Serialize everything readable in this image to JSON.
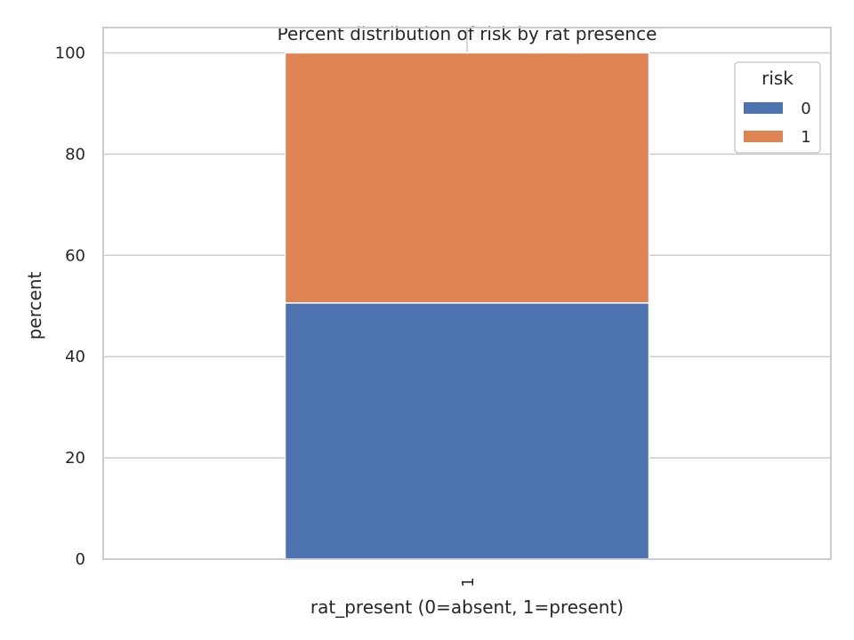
{
  "chart_data": {
    "type": "bar",
    "stacked": true,
    "title": "Percent distribution of risk by rat presence",
    "xlabel": "rat_present (0=absent, 1=present)",
    "ylabel": "percent",
    "categories": [
      "1"
    ],
    "series": [
      {
        "name": "0",
        "values": [
          50.6
        ],
        "color": "#4c72b0"
      },
      {
        "name": "1",
        "values": [
          49.4
        ],
        "color": "#dd8452"
      }
    ],
    "ylim": [
      0,
      105
    ],
    "yticks": [
      0,
      20,
      40,
      60,
      80,
      100
    ],
    "grid": true,
    "legend": {
      "title": "risk",
      "placement": "top-right"
    }
  }
}
